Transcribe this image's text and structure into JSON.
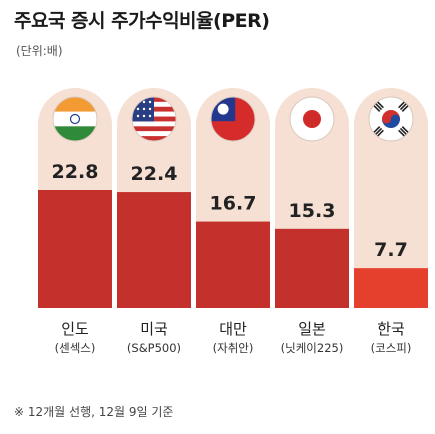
{
  "title": "주요국 증시 주가수익비율(PER)",
  "unit": "(단위:배)",
  "footnote": "※ 12개월 선행, 12월 9일 기준",
  "colors": {
    "track": "#f6e0d3",
    "bar": "#c4302b",
    "bar_highlight": "#e5402e",
    "label_text": "#222222"
  },
  "chart_data": {
    "type": "bar",
    "title": "주요국 증시 주가수익비율(PER)",
    "categories": [
      "인도",
      "미국",
      "대만",
      "일본",
      "한국"
    ],
    "indices": [
      "(센섹스)",
      "(S&P500)",
      "(자취안)",
      "(닛케이225)",
      "(코스피)"
    ],
    "flags": [
      "india-flag-icon",
      "usa-flag-icon",
      "taiwan-flag-icon",
      "japan-flag-icon",
      "korea-flag-icon"
    ],
    "values": [
      22.8,
      22.4,
      16.7,
      15.3,
      7.7
    ],
    "value_labels": [
      "22.8",
      "22.4",
      "16.7",
      "15.3",
      "7.7"
    ],
    "highlight": "한국",
    "ylim": [
      0,
      22.8
    ],
    "grid": false,
    "xlabel": "",
    "ylabel": ""
  }
}
